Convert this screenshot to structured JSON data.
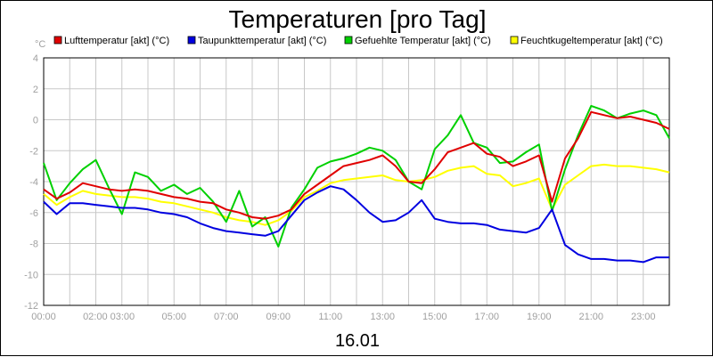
{
  "chart_data": {
    "type": "line",
    "title": "Temperaturen [pro Tag]",
    "xlabel": "16.01",
    "ylabel": "°C",
    "ylim": [
      -12,
      4
    ],
    "xlim": [
      0,
      24
    ],
    "y_ticks": [
      4,
      2,
      0,
      -2,
      -4,
      -6,
      -8,
      -10,
      -12
    ],
    "x_ticks": [
      {
        "pos": 0,
        "label": "00:00"
      },
      {
        "pos": 2.5,
        "label": "02:00 03:00"
      },
      {
        "pos": 5,
        "label": "05:00"
      },
      {
        "pos": 7,
        "label": "07:00"
      },
      {
        "pos": 9,
        "label": "09:00"
      },
      {
        "pos": 11,
        "label": "11:00"
      },
      {
        "pos": 13,
        "label": "13:00"
      },
      {
        "pos": 15,
        "label": "15:00"
      },
      {
        "pos": 17,
        "label": "17:00"
      },
      {
        "pos": 19,
        "label": "19:00"
      },
      {
        "pos": 21,
        "label": "21:00"
      },
      {
        "pos": 23,
        "label": "23:00"
      }
    ],
    "grid": true,
    "legend_position": "top",
    "series": [
      {
        "name": "Lufttemperatur [akt] (°C)",
        "color": "#e00000",
        "x": [
          0,
          0.5,
          1,
          1.5,
          2,
          2.5,
          3,
          3.5,
          4,
          4.5,
          5,
          5.5,
          6,
          6.5,
          7,
          7.5,
          8,
          8.5,
          9,
          9.5,
          10,
          10.5,
          11,
          11.5,
          12,
          12.5,
          13,
          13.5,
          14,
          14.5,
          15,
          15.5,
          16,
          16.5,
          17,
          17.5,
          18,
          18.5,
          19,
          19.5,
          20,
          20.5,
          21,
          21.5,
          22,
          22.5,
          23,
          23.5,
          24
        ],
        "values": [
          -4.5,
          -5.1,
          -4.7,
          -4.1,
          -4.3,
          -4.5,
          -4.6,
          -4.5,
          -4.6,
          -4.8,
          -5.0,
          -5.1,
          -5.3,
          -5.4,
          -5.8,
          -6.0,
          -6.3,
          -6.4,
          -6.2,
          -5.8,
          -4.8,
          -4.2,
          -3.6,
          -3.0,
          -2.8,
          -2.6,
          -2.3,
          -3.0,
          -4.0,
          -4.1,
          -3.2,
          -2.1,
          -1.8,
          -1.5,
          -2.2,
          -2.4,
          -3.0,
          -2.7,
          -2.3,
          -5.3,
          -2.5,
          -1.2,
          0.5,
          0.3,
          0.1,
          0.2,
          0.0,
          -0.2,
          -0.6
        ]
      },
      {
        "name": "Taupunkttemperatur [akt] (°C)",
        "color": "#0000e0",
        "x": [
          0,
          0.5,
          1,
          1.5,
          2,
          2.5,
          3,
          3.5,
          4,
          4.5,
          5,
          5.5,
          6,
          6.5,
          7,
          7.5,
          8,
          8.5,
          9,
          9.5,
          10,
          10.5,
          11,
          11.5,
          12,
          12.5,
          13,
          13.5,
          14,
          14.5,
          15,
          15.5,
          16,
          16.5,
          17,
          17.5,
          18,
          18.5,
          19,
          19.5,
          20,
          20.5,
          21,
          21.5,
          22,
          22.5,
          23,
          23.5,
          24
        ],
        "values": [
          -5.3,
          -6.1,
          -5.4,
          -5.4,
          -5.5,
          -5.6,
          -5.7,
          -5.7,
          -5.8,
          -6.0,
          -6.1,
          -6.3,
          -6.7,
          -7.0,
          -7.2,
          -7.3,
          -7.4,
          -7.5,
          -7.2,
          -6.2,
          -5.2,
          -4.7,
          -4.3,
          -4.5,
          -5.2,
          -6.0,
          -6.6,
          -6.5,
          -6.0,
          -5.2,
          -6.4,
          -6.6,
          -6.7,
          -6.7,
          -6.8,
          -7.1,
          -7.2,
          -7.3,
          -7.0,
          -5.8,
          -8.1,
          -8.7,
          -9.0,
          -9.0,
          -9.1,
          -9.1,
          -9.2,
          -8.9,
          -8.9
        ]
      },
      {
        "name": "Gefuehlte Temperatur [akt] (°C)",
        "color": "#00d000",
        "x": [
          0,
          0.5,
          1,
          1.5,
          2,
          2.5,
          3,
          3.5,
          4,
          4.5,
          5,
          5.5,
          6,
          6.5,
          7,
          7.5,
          8,
          8.5,
          9,
          9.5,
          10,
          10.5,
          11,
          11.5,
          12,
          12.5,
          13,
          13.5,
          14,
          14.5,
          15,
          15.5,
          16,
          16.5,
          17,
          17.5,
          18,
          18.5,
          19,
          19.5,
          20,
          20.5,
          21,
          21.5,
          22,
          22.5,
          23,
          23.5,
          24
        ],
        "values": [
          -2.8,
          -5.2,
          -4.1,
          -3.2,
          -2.6,
          -4.4,
          -6.1,
          -3.4,
          -3.7,
          -4.6,
          -4.2,
          -4.8,
          -4.4,
          -5.3,
          -6.6,
          -4.6,
          -6.9,
          -6.3,
          -8.2,
          -5.7,
          -4.5,
          -3.1,
          -2.7,
          -2.5,
          -2.2,
          -1.8,
          -2.0,
          -2.6,
          -4.0,
          -4.5,
          -1.9,
          -1.0,
          0.3,
          -1.5,
          -1.8,
          -2.8,
          -2.7,
          -2.1,
          -1.6,
          -5.9,
          -3.2,
          -1.0,
          0.9,
          0.6,
          0.1,
          0.4,
          0.6,
          0.3,
          -1.2
        ]
      },
      {
        "name": "Feuchtkugeltemperatur [akt] (°C)",
        "color": "#ffff00",
        "x": [
          0,
          0.5,
          1,
          1.5,
          2,
          2.5,
          3,
          3.5,
          4,
          4.5,
          5,
          5.5,
          6,
          6.5,
          7,
          7.5,
          8,
          8.5,
          9,
          9.5,
          10,
          10.5,
          11,
          11.5,
          12,
          12.5,
          13,
          13.5,
          14,
          14.5,
          15,
          15.5,
          16,
          16.5,
          17,
          17.5,
          18,
          18.5,
          19,
          19.5,
          20,
          20.5,
          21,
          21.5,
          22,
          22.5,
          23,
          23.5,
          24
        ],
        "values": [
          -4.8,
          -5.5,
          -5.0,
          -4.6,
          -4.8,
          -4.9,
          -5.0,
          -5.0,
          -5.1,
          -5.3,
          -5.4,
          -5.6,
          -5.8,
          -6.0,
          -6.3,
          -6.5,
          -6.6,
          -6.8,
          -6.5,
          -5.9,
          -5.0,
          -4.6,
          -4.1,
          -3.9,
          -3.8,
          -3.7,
          -3.6,
          -3.9,
          -4.0,
          -3.9,
          -3.7,
          -3.3,
          -3.1,
          -3.0,
          -3.5,
          -3.6,
          -4.3,
          -4.1,
          -3.8,
          -5.8,
          -4.2,
          -3.6,
          -3.0,
          -2.9,
          -3.0,
          -3.0,
          -3.1,
          -3.2,
          -3.4
        ]
      }
    ]
  }
}
